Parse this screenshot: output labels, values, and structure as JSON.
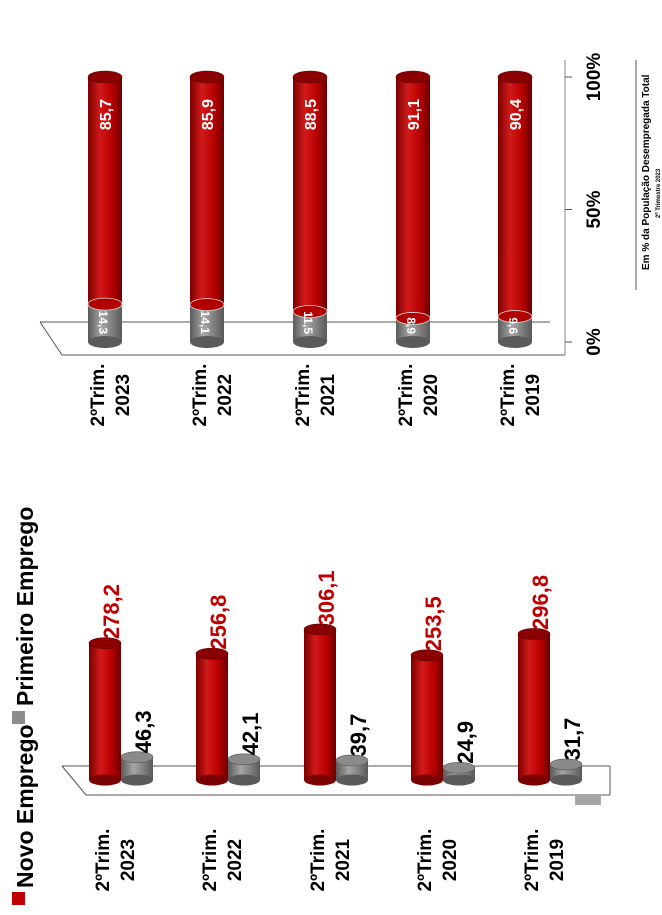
{
  "chart_data": [
    {
      "type": "bar",
      "legend": [
        "Novo Emprego",
        "Primeiro Emprego"
      ],
      "legend_placement": "top",
      "categories": [
        [
          "2ºTrim.",
          "2023"
        ],
        [
          "2ºTrim.",
          "2022"
        ],
        [
          "2ºTrim.",
          "2021"
        ],
        [
          "2ºTrim.",
          "2020"
        ],
        [
          "2ºTrim.",
          "2019"
        ]
      ],
      "series": [
        {
          "name": "Novo Emprego",
          "values": [
            278.2,
            256.8,
            306.1,
            253.5,
            296.8
          ],
          "value_labels": [
            "278,2",
            "256,8",
            "306,1",
            "253,5",
            "296,8"
          ]
        },
        {
          "name": "Primeiro Emprego",
          "values": [
            46.3,
            42.1,
            39.7,
            24.9,
            31.7
          ],
          "value_labels": [
            "46,3",
            "42,1",
            "39,7",
            "24,9",
            "31,7"
          ]
        }
      ],
      "colors": {
        "novo": "#c00000",
        "primeiro": "#8c8c8c",
        "novo_label": "#c00000",
        "primeiro_label": "#000000"
      },
      "grid": false
    },
    {
      "type": "bar",
      "stacked": true,
      "categories": [
        [
          "2ºTrim.",
          "2023"
        ],
        [
          "2ºTrim.",
          "2022"
        ],
        [
          "2ºTrim.",
          "2021"
        ],
        [
          "2ºTrim.",
          "2020"
        ],
        [
          "2ºTrim.",
          "2019"
        ]
      ],
      "series": [
        {
          "name": "Primeiro Emprego",
          "values": [
            14.3,
            14.1,
            11.5,
            8.9,
            9.6
          ],
          "value_labels": [
            "14,3",
            "14,1",
            "11,5",
            "8,9",
            "9,6"
          ]
        },
        {
          "name": "Novo Emprego",
          "values": [
            85.7,
            85.9,
            88.5,
            91.1,
            90.4
          ],
          "value_labels": [
            "85,7",
            "85,9",
            "88,5",
            "91,1",
            "90,4"
          ]
        }
      ],
      "axis_ticks": [
        "0%",
        "50%",
        "100%"
      ],
      "ylim": [
        0,
        100
      ],
      "footer": "Em % da População Desempregada Total",
      "footer_sub": "2º Trimestre 2023",
      "grid": false
    }
  ]
}
